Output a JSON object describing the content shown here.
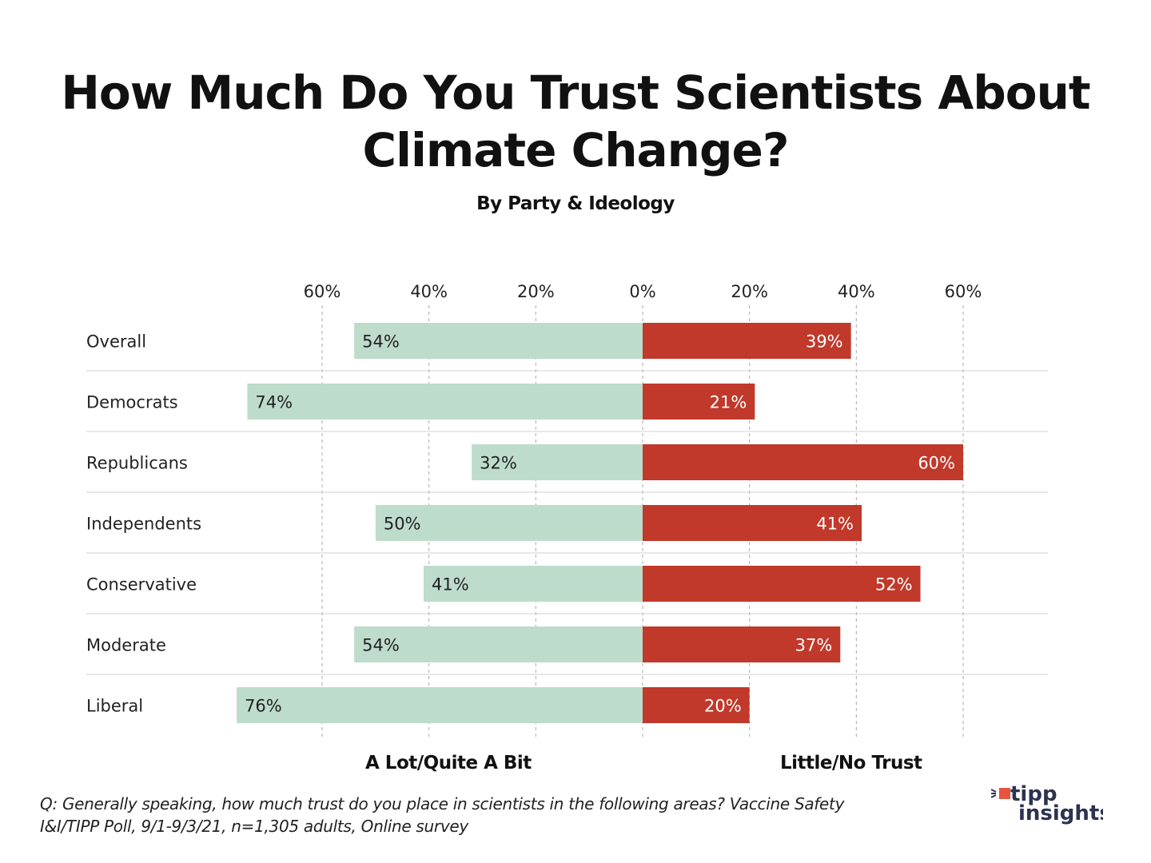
{
  "chart_data": {
    "type": "bar",
    "orientation": "horizontal-diverging",
    "title": "How Much Do You Trust Scientists About Climate Change?",
    "subtitle": "By Party & Ideology",
    "categories": [
      "Overall",
      "Democrats",
      "Republicans",
      "Independents",
      "Conservative",
      "Moderate",
      "Liberal"
    ],
    "series": [
      {
        "name": "A Lot/Quite A Bit",
        "side": "left",
        "color": "#bedccb",
        "values": [
          54,
          74,
          32,
          50,
          41,
          54,
          76
        ]
      },
      {
        "name": "Little/No Trust",
        "side": "right",
        "color": "#c0392b",
        "values": [
          39,
          21,
          60,
          41,
          52,
          37,
          20
        ]
      }
    ],
    "ticks": [
      "60%",
      "40%",
      "20%",
      "0%",
      "20%",
      "40%",
      "60%"
    ],
    "xlim": [
      -60,
      60
    ],
    "grid": "vertical dashed",
    "value_suffix": "%"
  },
  "footnote": {
    "line1": "Q:  Generally speaking, how much trust do you place in scientists in the following areas? Vaccine Safety",
    "line2": "I&I/TIPP Poll, 9/1-9/3/21, n=1,305 adults, Online survey"
  },
  "logo": {
    "line1": "tipp",
    "line2": "insights",
    "accent": "#e8533f",
    "text_color": "#2d3250"
  }
}
